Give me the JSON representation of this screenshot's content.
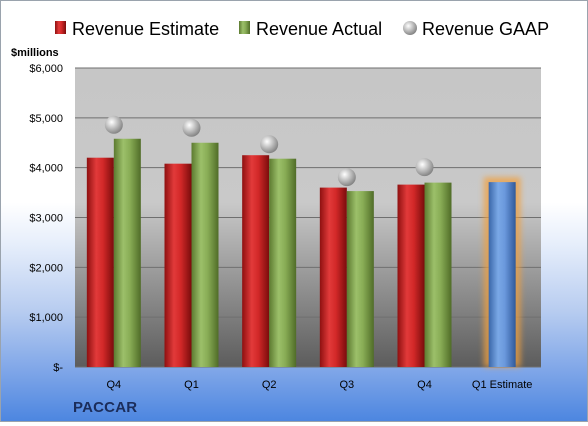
{
  "chart_data": {
    "type": "bar",
    "company": "PACCAR",
    "ylabel": "$millions",
    "ylim": [
      0,
      6000
    ],
    "yticks": [
      {
        "value": 0,
        "label": "$-"
      },
      {
        "value": 1000,
        "label": "$1,000"
      },
      {
        "value": 2000,
        "label": "$2,000"
      },
      {
        "value": 3000,
        "label": "$3,000"
      },
      {
        "value": 4000,
        "label": "$4,000"
      },
      {
        "value": 5000,
        "label": "$5,000"
      },
      {
        "value": 6000,
        "label": "$6,000"
      }
    ],
    "categories": [
      "Q4",
      "Q1",
      "Q2",
      "Q3",
      "Q4",
      "Q1 Estimate"
    ],
    "series": [
      {
        "name": "Revenue Estimate",
        "kind": "bar",
        "color": "#d42a2a",
        "values": [
          4200,
          4080,
          4250,
          3600,
          3660,
          null
        ]
      },
      {
        "name": "Revenue Actual",
        "kind": "bar",
        "color": "#8db05a",
        "values": [
          4580,
          4500,
          4180,
          3530,
          3700,
          null
        ]
      },
      {
        "name": "Revenue GAAP",
        "kind": "marker",
        "color": "#b0b0b0",
        "values": [
          4860,
          4800,
          4470,
          3810,
          4010,
          null
        ]
      },
      {
        "name": "Q1 Estimate",
        "kind": "bar",
        "color": "#5b8fd6",
        "highlight": "#f0a040",
        "values": [
          null,
          null,
          null,
          null,
          null,
          3710
        ]
      }
    ],
    "legend": "top",
    "grid": true
  }
}
